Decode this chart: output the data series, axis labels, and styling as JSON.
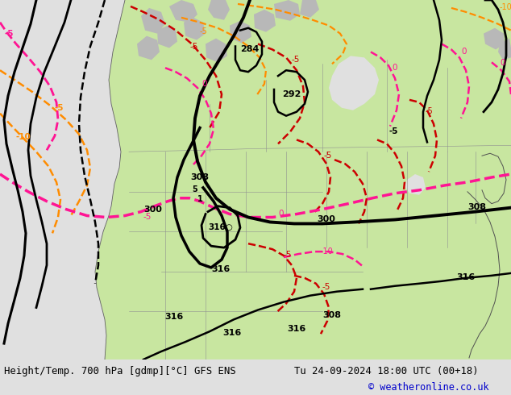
{
  "title_left": "Height/Temp. 700 hPa [gdmp][°C] GFS ENS",
  "title_right": "Tu 24-09-2024 18:00 UTC (00+18)",
  "copyright": "© weatheronline.co.uk",
  "bg_color": "#e0e0e0",
  "land_color": "#c8e6a0",
  "mountain_color": "#b8b8b8",
  "title_color": "#000000",
  "copyright_color": "#0000cc",
  "figsize": [
    6.34,
    4.9
  ],
  "dpi": 100
}
